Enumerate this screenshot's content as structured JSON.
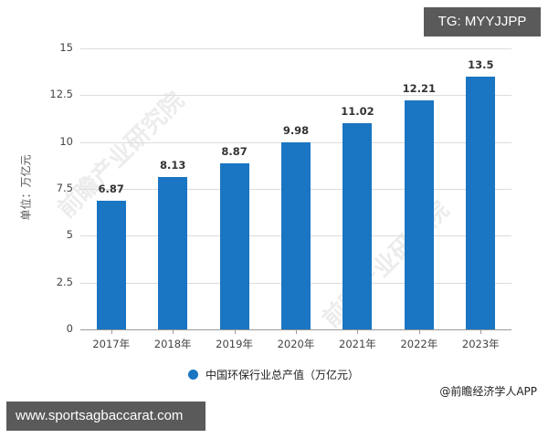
{
  "chart_data": {
    "type": "bar",
    "title": "",
    "categories": [
      "2017年",
      "2018年",
      "2019年",
      "2020年",
      "2021年",
      "2022年",
      "2023年"
    ],
    "series": [
      {
        "name": "中国环保行业总产值（万亿元）",
        "values": [
          6.87,
          8.13,
          8.87,
          9.98,
          11.02,
          12.21,
          13.5
        ],
        "color": "#1a75c2"
      }
    ],
    "value_labels": [
      "6.87",
      "8.13",
      "8.87",
      "9.98",
      "11.02",
      "12.21",
      "13.5"
    ],
    "xlabel": "",
    "ylabel": "单位：万亿元",
    "ylim": [
      0,
      15
    ],
    "yticks": [
      "0",
      "2.5",
      "5",
      "7.5",
      "10",
      "12.5",
      "15"
    ],
    "grid": true,
    "legend_position": "bottom"
  },
  "legend": {
    "label": "中国环保行业总产值（万亿元）"
  },
  "source": "@前瞻经济学人APP",
  "watermark": "前瞻产业研究院",
  "overlays": {
    "tg_badge": "TG: MYYJJPP",
    "url_badge": "www.sportsagbaccarat.com"
  }
}
